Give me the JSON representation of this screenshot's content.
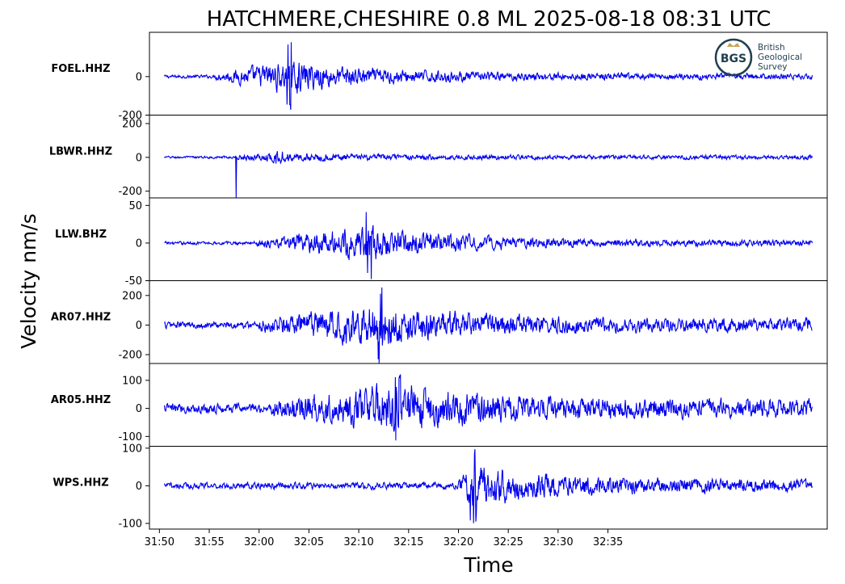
{
  "chart_data": {
    "type": "line",
    "title": "HATCHMERE,CHESHIRE 0.8 ML   2025-08-18 08:31 UTC",
    "xlabel": "Time",
    "ylabel": "Velocity nm/s",
    "x_ticks": [
      "31:50",
      "31:55",
      "32:00",
      "32:05",
      "32:10",
      "32:15",
      "32:20",
      "32:25",
      "32:30",
      "32:35"
    ],
    "x_range_seconds": [
      -1,
      67
    ],
    "trace_seconds": [
      0.5,
      65.5
    ],
    "series_color": "#0000ee",
    "panels": [
      {
        "station": "FOEL.HHZ",
        "ylim": [
          -200,
          230
        ],
        "yticks": [
          {
            "value": 0,
            "label": "0"
          },
          {
            "value": -200,
            "label": "-200"
          }
        ],
        "onset_s": 5.5,
        "peak_s": 13,
        "peak_amp": 180,
        "noise": 12,
        "spike": null
      },
      {
        "station": "LBWR.HHZ",
        "ylim": [
          -240,
          250
        ],
        "yticks": [
          {
            "value": 200,
            "label": "200"
          },
          {
            "value": 0,
            "label": "0"
          },
          {
            "value": -200,
            "label": "-200"
          }
        ],
        "onset_s": 7.5,
        "peak_s": 12,
        "peak_amp": 40,
        "noise": 10,
        "spike": {
          "at_s": 7.7,
          "amp": 240
        }
      },
      {
        "station": "LLW.BHZ",
        "ylim": [
          -50,
          60
        ],
        "yticks": [
          {
            "value": 50,
            "label": "50"
          },
          {
            "value": 0,
            "label": "0"
          },
          {
            "value": -50,
            "label": "-50"
          }
        ],
        "onset_s": 9.5,
        "peak_s": 21,
        "peak_amp": 50,
        "noise": 3,
        "spike": null
      },
      {
        "station": "AR07.HHZ",
        "ylim": [
          -260,
          300
        ],
        "yticks": [
          {
            "value": 200,
            "label": "200"
          },
          {
            "value": 0,
            "label": "0"
          },
          {
            "value": -200,
            "label": "-200"
          }
        ],
        "onset_s": 10,
        "peak_s": 22,
        "peak_amp": 270,
        "noise": 35,
        "spike": null
      },
      {
        "station": "AR05.HHZ",
        "ylim": [
          -135,
          160
        ],
        "yticks": [
          {
            "value": 100,
            "label": "100"
          },
          {
            "value": 0,
            "label": "0"
          },
          {
            "value": -100,
            "label": "-100"
          }
        ],
        "onset_s": 11,
        "peak_s": 24,
        "peak_amp": 140,
        "noise": 25,
        "spike": null
      },
      {
        "station": "WPS.HHZ",
        "ylim": [
          -115,
          105
        ],
        "yticks": [
          {
            "value": 100,
            "label": "100"
          },
          {
            "value": 0,
            "label": "0"
          },
          {
            "value": -100,
            "label": "-100"
          }
        ],
        "onset_s": 30,
        "peak_s": 31.5,
        "peak_amp": 100,
        "noise": 12,
        "spike": null
      }
    ]
  },
  "logo": {
    "monogram": "BGS",
    "line1": "British",
    "line2": "Geological",
    "line3": "Survey",
    "color": "#1f3f4f"
  }
}
